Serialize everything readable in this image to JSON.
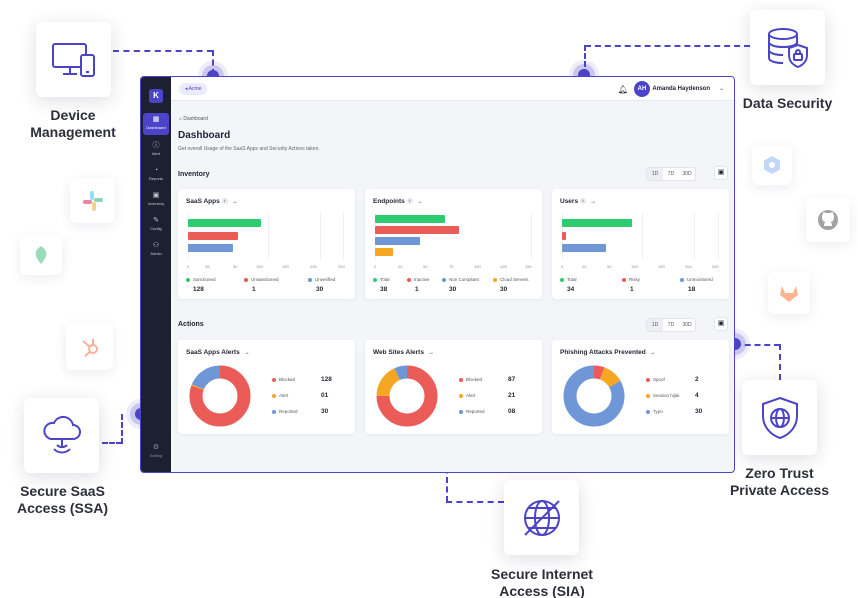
{
  "features": {
    "device_management": "Device\nManagement",
    "data_security": "Data Security",
    "secure_saas": "Secure SaaS\nAccess (SSA)",
    "zero_trust": "Zero Trust\nPrivate Access",
    "secure_internet": "Secure Internet\nAccess (SIA)"
  },
  "app": {
    "logo": "K",
    "org_pill": "Acme",
    "user": {
      "initials": "AH",
      "name": "Amanda Haydenson"
    },
    "nav": [
      {
        "label": "Dashboard",
        "icon": "grid-icon",
        "glyph": "▦"
      },
      {
        "label": "Alert",
        "icon": "alert-icon",
        "glyph": "ⓘ"
      },
      {
        "label": "Reports",
        "icon": "reports-icon",
        "glyph": "◔"
      },
      {
        "label": "Inventory",
        "icon": "inventory-icon",
        "glyph": "▣"
      },
      {
        "label": "Config",
        "icon": "config-icon",
        "glyph": "✎"
      },
      {
        "label": "Admin",
        "icon": "admin-icon",
        "glyph": "⚇"
      }
    ],
    "setting": {
      "label": "Setting",
      "glyph": "⚙"
    },
    "breadcrumb": "Dashboard",
    "title": "Dashboard",
    "subtitle": "Get overall Usage of the SaaS Apps and Security Actions taken.",
    "inventory_label": "Inventory",
    "actions_label": "Actions",
    "periods": [
      "1D",
      "7D",
      "30D"
    ]
  },
  "inventory": [
    {
      "title": "SaaS Apps",
      "info": "i",
      "ticks": [
        "0",
        "25",
        "50",
        "100",
        "150",
        "200",
        "250"
      ],
      "stats": [
        {
          "label": "Sanctioned",
          "value": "128",
          "color": "#2ecc71"
        },
        {
          "label": "Unsanctioned",
          "value": "1",
          "color": "#eb5b57"
        },
        {
          "label": "Unverified",
          "value": "30",
          "color": "#6f96d6"
        }
      ]
    },
    {
      "title": "Endpoints",
      "info": "i",
      "ticks": [
        "0",
        "25",
        "50",
        "75",
        "100",
        "125",
        "150"
      ],
      "stats": [
        {
          "label": "Total",
          "value": "38",
          "color": "#2ecc71"
        },
        {
          "label": "Inactive",
          "value": "1",
          "color": "#eb5b57"
        },
        {
          "label": "Non Compliant",
          "value": "30",
          "color": "#6f96d6"
        },
        {
          "label": "Cloud Servers",
          "value": "30",
          "color": "#f5a623"
        }
      ]
    },
    {
      "title": "Users",
      "info": "i",
      "ticks": [
        "0",
        "25",
        "50",
        "100",
        "150",
        "200",
        "250"
      ],
      "stats": [
        {
          "label": "Total",
          "value": "34",
          "color": "#2ecc71"
        },
        {
          "label": "Risky",
          "value": "1",
          "color": "#eb5b57"
        },
        {
          "label": "Unmonitored",
          "value": "18",
          "color": "#6f96d6"
        }
      ]
    }
  ],
  "actions": [
    {
      "title": "SaaS Apps Alerts",
      "items": [
        {
          "label": "Blocked",
          "value": "128",
          "color": "#eb5b57"
        },
        {
          "label": "Alert",
          "value": "01",
          "color": "#f5a623"
        },
        {
          "label": "Reported",
          "value": "30",
          "color": "#6f96d6"
        }
      ]
    },
    {
      "title": "Web Sites Alerts",
      "items": [
        {
          "label": "Blocked",
          "value": "87",
          "color": "#eb5b57"
        },
        {
          "label": "Alert",
          "value": "21",
          "color": "#f5a623"
        },
        {
          "label": "Reported",
          "value": "08",
          "color": "#6f96d6"
        }
      ]
    },
    {
      "title": "Phishing Attacks Prevented",
      "items": [
        {
          "label": "Spoof",
          "value": "2",
          "color": "#eb5b57"
        },
        {
          "label": "Session hijak",
          "value": "4",
          "color": "#f5a623"
        },
        {
          "label": "Typo",
          "value": "30",
          "color": "#6f96d6"
        }
      ]
    }
  ]
}
